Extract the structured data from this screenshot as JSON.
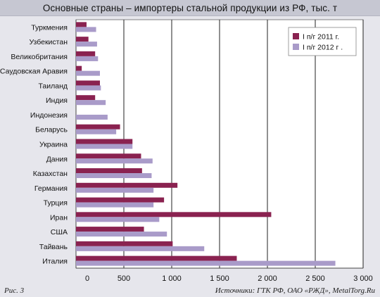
{
  "title": "Основные страны – импортеры стальной продукции из РФ, тыс. т",
  "footer": {
    "figure_label": "Рис. 3",
    "source": "Источники: ГТК РФ, ОАО «РЖД», MetalTorg.Ru"
  },
  "colors": {
    "series_2011": "#8a2250",
    "series_2012": "#a99bc9",
    "plot_bg": "#ffffff",
    "frame_bg": "#e6e6ec",
    "title_bg": "#c6c7d2"
  },
  "chart_data": {
    "type": "bar",
    "orientation": "horizontal",
    "title": "Основные страны – импортеры стальной продукции из РФ, тыс. т",
    "xlabel": "",
    "ylabel": "",
    "xlim": [
      0,
      3000
    ],
    "xticks": [
      0,
      500,
      1000,
      1500,
      2000,
      2500,
      3000
    ],
    "xtick_labels": [
      "0",
      "500",
      "1 000",
      "1 500",
      "2 000",
      "2 500",
      "3 000"
    ],
    "grid": "vertical",
    "legend_position": "top-right",
    "categories": [
      "Туркмения",
      "Узбекистан",
      "Великобритания",
      "Саудовская Аравия",
      "Таиланд",
      "Индия",
      "Индонезия",
      "Беларусь",
      "Украина",
      "Дания",
      "Казахстан",
      "Германия",
      "Турция",
      "Иран",
      "США",
      "Тайвань",
      "Италия"
    ],
    "series": [
      {
        "name": "I п/г 2011 г.",
        "color": "#8a2250",
        "values": [
          110,
          130,
          200,
          60,
          250,
          200,
          0,
          460,
          590,
          680,
          690,
          1060,
          920,
          2040,
          710,
          1010,
          1680
        ]
      },
      {
        "name": "I п/г 2012 г .",
        "color": "#a99bc9",
        "values": [
          210,
          220,
          230,
          250,
          260,
          310,
          330,
          420,
          590,
          800,
          790,
          810,
          810,
          870,
          950,
          1340,
          2710
        ]
      }
    ]
  }
}
